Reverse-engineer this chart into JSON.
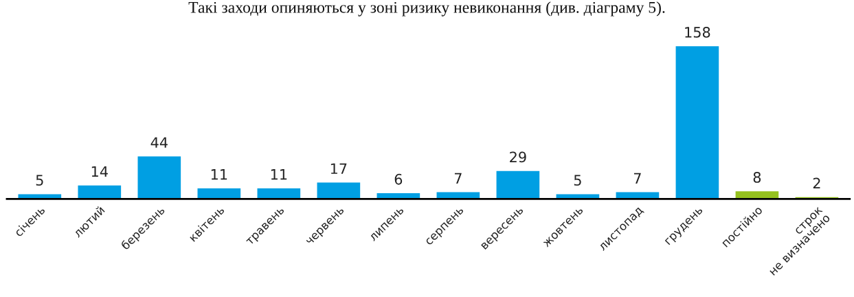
{
  "chart_data": {
    "type": "bar",
    "categories": [
      "січень",
      "лютий",
      "березень",
      "квітень",
      "травень",
      "червень",
      "липень",
      "серпень",
      "вересень",
      "жовтень",
      "листопад",
      "грудень",
      "постійно",
      "строк\nне визначено"
    ],
    "values": [
      5,
      14,
      44,
      11,
      11,
      17,
      6,
      7,
      29,
      5,
      7,
      158,
      8,
      2
    ],
    "colors": [
      "#009fe3",
      "#009fe3",
      "#009fe3",
      "#009fe3",
      "#009fe3",
      "#009fe3",
      "#009fe3",
      "#009fe3",
      "#009fe3",
      "#009fe3",
      "#009fe3",
      "#009fe3",
      "#95c11f",
      "#95c11f"
    ],
    "data_labels": true,
    "annotations": [
      "Такі заходи опиняються у зоні ризику невиконання (див. діаграму 5)."
    ]
  }
}
